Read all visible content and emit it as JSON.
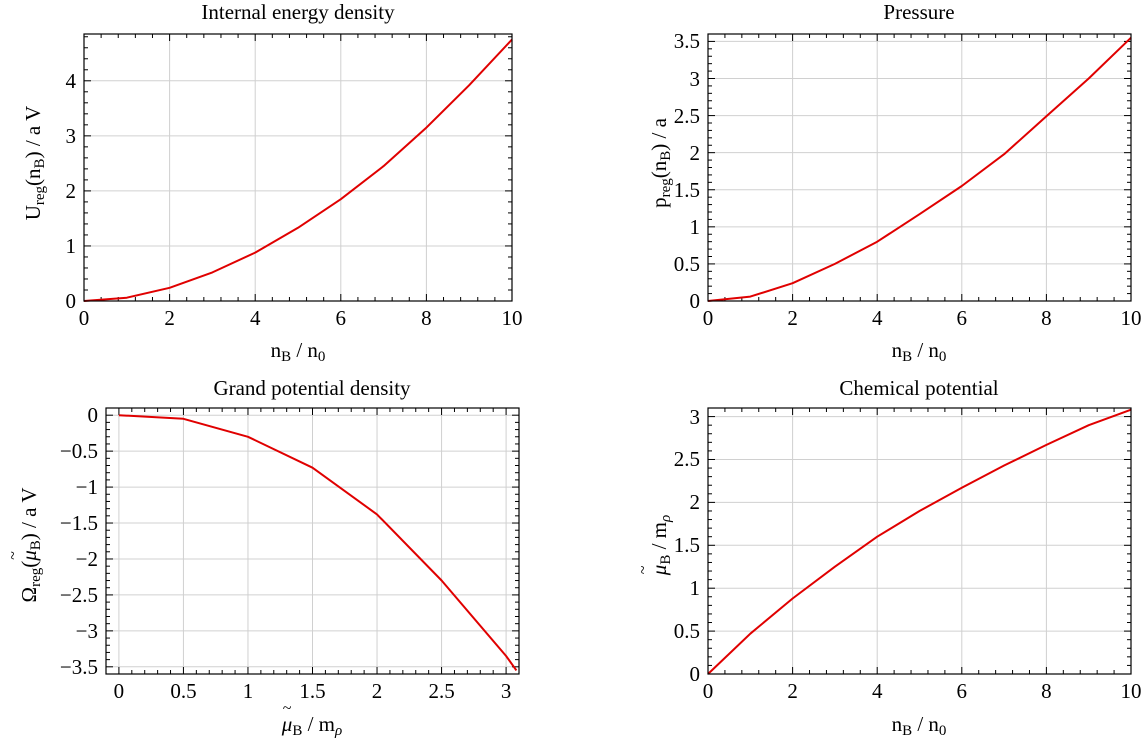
{
  "chart_data": [
    {
      "type": "line",
      "title": "Internal energy density",
      "xlabel": "n_B / n_0",
      "ylabel": "U_reg(n_B) / a V",
      "xlim": [
        0,
        10
      ],
      "ylim": [
        0,
        4.85
      ],
      "xticks": [
        "0",
        "2",
        "4",
        "6",
        "8",
        "10"
      ],
      "yticks": [
        "0",
        "1",
        "2",
        "3",
        "4"
      ],
      "grid": true,
      "series": [
        {
          "color": "#e00000",
          "x": [
            0,
            1,
            2,
            3,
            4,
            5,
            6,
            7,
            8,
            9,
            10
          ],
          "y": [
            0,
            0.06,
            0.24,
            0.52,
            0.88,
            1.33,
            1.85,
            2.45,
            3.15,
            3.92,
            4.75
          ]
        }
      ]
    },
    {
      "type": "line",
      "title": "Pressure",
      "xlabel": "n_B / n_0",
      "ylabel": "p_reg(n_B) / a",
      "xlim": [
        0,
        10
      ],
      "ylim": [
        0,
        3.6
      ],
      "xticks": [
        "0",
        "2",
        "4",
        "6",
        "8",
        "10"
      ],
      "yticks": [
        "0",
        "0.5",
        "1",
        "1.5",
        "2",
        "2.5",
        "3",
        "3.5"
      ],
      "grid": true,
      "series": [
        {
          "color": "#e00000",
          "x": [
            0,
            1,
            2,
            3,
            4,
            5,
            6,
            7,
            8,
            9,
            10
          ],
          "y": [
            0,
            0.06,
            0.24,
            0.5,
            0.8,
            1.17,
            1.55,
            1.98,
            2.49,
            3.0,
            3.55
          ]
        }
      ]
    },
    {
      "type": "line",
      "title": "Grand potential density",
      "xlabel": "μ̃_B / m_ρ",
      "ylabel": "Ω_reg(μ̃_B) / a V",
      "xlim": [
        -0.1,
        3.1
      ],
      "ylim": [
        -3.6,
        0.1
      ],
      "xticks": [
        "0",
        "0.5",
        "1",
        "1.5",
        "2",
        "2.5",
        "3"
      ],
      "yticks": [
        "0",
        "−0.5",
        "−1",
        "−1.5",
        "−2",
        "−2.5",
        "−3",
        "−3.5"
      ],
      "grid": true,
      "series": [
        {
          "color": "#e00000",
          "x": [
            0,
            0.5,
            1,
            1.5,
            2,
            2.5,
            3,
            3.08
          ],
          "y": [
            0,
            -0.05,
            -0.3,
            -0.73,
            -1.38,
            -2.3,
            -3.35,
            -3.55
          ]
        }
      ]
    },
    {
      "type": "line",
      "title": "Chemical potential",
      "xlabel": "n_B / n_0",
      "ylabel": "μ̃_B / m_ρ",
      "xlim": [
        0,
        10
      ],
      "ylim": [
        0,
        3.1
      ],
      "xticks": [
        "0",
        "2",
        "4",
        "6",
        "8",
        "10"
      ],
      "yticks": [
        "0",
        "0.5",
        "1",
        "1.5",
        "2",
        "2.5",
        "3"
      ],
      "grid": true,
      "series": [
        {
          "color": "#e00000",
          "x": [
            0,
            1,
            2,
            3,
            4,
            5,
            6,
            7,
            8,
            9,
            10
          ],
          "y": [
            0,
            0.47,
            0.88,
            1.25,
            1.6,
            1.9,
            2.17,
            2.43,
            2.67,
            2.9,
            3.08
          ]
        }
      ]
    }
  ]
}
